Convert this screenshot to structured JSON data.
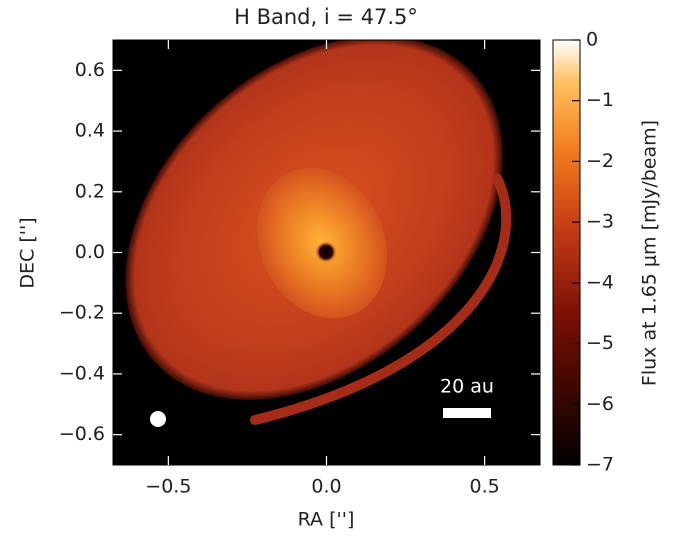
{
  "chart_data": {
    "type": "image",
    "title": "H Band, i = 47.5°",
    "xlabel": "RA ['']",
    "ylabel": "DEC ['']",
    "xlim": [
      -0.675,
      0.675
    ],
    "ylim": [
      -0.7,
      0.7
    ],
    "xticks": [
      {
        "value": -0.5,
        "label": "−0.5"
      },
      {
        "value": 0,
        "label": "0.0"
      },
      {
        "value": 0.5,
        "label": "0.5"
      }
    ],
    "yticks": [
      {
        "value": -0.6,
        "label": "−0.6"
      },
      {
        "value": -0.4,
        "label": "−0.4"
      },
      {
        "value": -0.2,
        "label": "−0.2"
      },
      {
        "value": 0,
        "label": "0.0"
      },
      {
        "value": 0.2,
        "label": "0.2"
      },
      {
        "value": 0.4,
        "label": "0.4"
      },
      {
        "value": 0.6,
        "label": "0.6"
      }
    ],
    "colorbar": {
      "label": "Flux at 1.65 μm [mJy/beam]",
      "lim": [
        -7,
        0
      ],
      "ticks": [
        {
          "value": -7,
          "label": "−7"
        },
        {
          "value": -6,
          "label": "−6"
        },
        {
          "value": -5,
          "label": "−5"
        },
        {
          "value": -4,
          "label": "−4"
        },
        {
          "value": -3,
          "label": "−3"
        },
        {
          "value": -2,
          "label": "−2"
        },
        {
          "value": -1,
          "label": "−1"
        },
        0
      ]
    },
    "scalebar_label": "20 au"
  }
}
